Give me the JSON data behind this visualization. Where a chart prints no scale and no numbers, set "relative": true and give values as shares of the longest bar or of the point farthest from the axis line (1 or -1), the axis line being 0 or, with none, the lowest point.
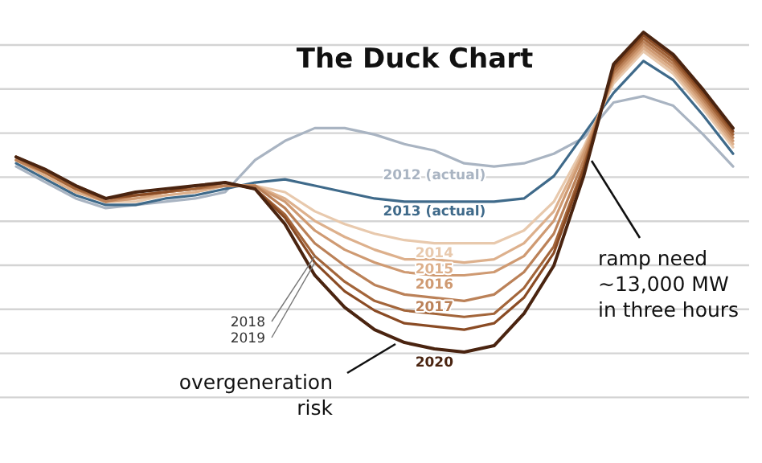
{
  "chart_data": {
    "type": "line",
    "title": "The Duck Chart",
    "relative": true,
    "grid": "y",
    "line_style": "solid",
    "categories": [
      null,
      null,
      null,
      null,
      null,
      null,
      null,
      null,
      null,
      null,
      null,
      null,
      null,
      null,
      null,
      null,
      null,
      null,
      null,
      null,
      null,
      null,
      null,
      null,
      null
    ],
    "series": [
      {
        "name": "2012 (actual)",
        "color": "#a9b4c2",
        "values": [
          0.58,
          0.53,
          0.48,
          0.45,
          0.46,
          0.47,
          0.48,
          0.5,
          0.6,
          0.66,
          0.7,
          0.7,
          0.68,
          0.65,
          0.63,
          0.59,
          0.58,
          0.59,
          0.62,
          0.67,
          0.78,
          0.8,
          0.77,
          0.68,
          0.58
        ]
      },
      {
        "name": "2013 (actual)",
        "color": "#3f6a8a",
        "values": [
          0.59,
          0.54,
          0.49,
          0.46,
          0.46,
          0.48,
          0.49,
          0.51,
          0.53,
          0.54,
          0.52,
          0.5,
          0.48,
          0.47,
          0.47,
          0.47,
          0.47,
          0.48,
          0.55,
          0.68,
          0.81,
          0.91,
          0.85,
          0.74,
          0.62
        ]
      },
      {
        "name": "2014",
        "color": "#e8c9ad",
        "values": [
          0.6,
          0.55,
          0.5,
          0.47,
          0.47,
          0.49,
          0.5,
          0.52,
          0.52,
          0.5,
          0.44,
          0.4,
          0.37,
          0.35,
          0.34,
          0.34,
          0.34,
          0.38,
          0.47,
          0.64,
          0.84,
          0.94,
          0.87,
          0.76,
          0.64
        ]
      },
      {
        "name": "2015",
        "color": "#ddb08c",
        "values": [
          0.6,
          0.55,
          0.5,
          0.47,
          0.48,
          0.49,
          0.5,
          0.52,
          0.52,
          0.48,
          0.41,
          0.36,
          0.32,
          0.29,
          0.29,
          0.28,
          0.29,
          0.34,
          0.44,
          0.63,
          0.85,
          0.95,
          0.88,
          0.77,
          0.65
        ]
      },
      {
        "name": "2016",
        "color": "#cf9a72",
        "values": [
          0.6,
          0.56,
          0.51,
          0.47,
          0.48,
          0.5,
          0.51,
          0.52,
          0.52,
          0.47,
          0.38,
          0.32,
          0.28,
          0.25,
          0.24,
          0.24,
          0.25,
          0.3,
          0.41,
          0.62,
          0.86,
          0.96,
          0.89,
          0.78,
          0.66
        ]
      },
      {
        "name": "2017",
        "color": "#bb8158",
        "values": [
          0.6,
          0.56,
          0.51,
          0.47,
          0.49,
          0.5,
          0.51,
          0.52,
          0.52,
          0.45,
          0.34,
          0.27,
          0.21,
          0.18,
          0.17,
          0.16,
          0.18,
          0.25,
          0.37,
          0.6,
          0.87,
          0.97,
          0.9,
          0.79,
          0.67
        ]
      },
      {
        "name": "2018",
        "color": "#a3653a",
        "values": [
          0.61,
          0.56,
          0.51,
          0.48,
          0.49,
          0.5,
          0.51,
          0.53,
          0.51,
          0.43,
          0.3,
          0.22,
          0.16,
          0.13,
          0.12,
          0.11,
          0.12,
          0.2,
          0.33,
          0.58,
          0.88,
          0.98,
          0.91,
          0.8,
          0.68
        ]
      },
      {
        "name": "2019",
        "color": "#8a4b24",
        "values": [
          0.61,
          0.57,
          0.52,
          0.48,
          0.49,
          0.5,
          0.52,
          0.53,
          0.51,
          0.42,
          0.28,
          0.19,
          0.13,
          0.09,
          0.08,
          0.07,
          0.09,
          0.17,
          0.31,
          0.57,
          0.89,
          0.99,
          0.92,
          0.81,
          0.69
        ]
      },
      {
        "name": "2020",
        "color": "#4a2410",
        "values": [
          0.61,
          0.57,
          0.52,
          0.48,
          0.5,
          0.51,
          0.52,
          0.53,
          0.51,
          0.4,
          0.24,
          0.14,
          0.07,
          0.03,
          0.01,
          0.0,
          0.02,
          0.12,
          0.27,
          0.55,
          0.9,
          1.0,
          0.93,
          0.82,
          0.7
        ]
      }
    ],
    "annotations": [
      "ramp need\n~13,000 MW\nin three hours",
      "overgeneration\nrisk"
    ]
  }
}
